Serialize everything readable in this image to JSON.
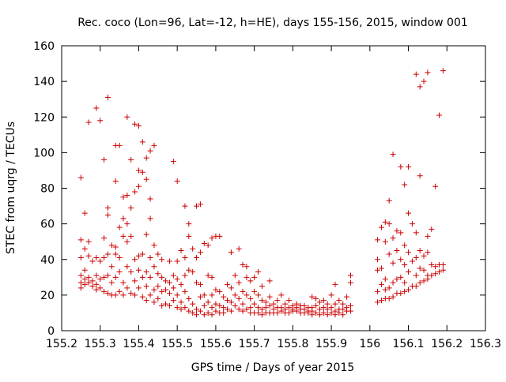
{
  "chart_data": {
    "type": "scatter",
    "title": "Rec. coco (Lon=96, Lat=-12, h=HE), days 155-156, 2015, window 001",
    "xlabel": "GPS time / Days of year 2015",
    "ylabel": "STEC from uqrg / TECUs",
    "xlim": [
      155.2,
      156.3
    ],
    "ylim": [
      0,
      160
    ],
    "xticks": [
      "155.2",
      "155.3",
      "155.4",
      "155.5",
      "155.6",
      "155.7",
      "155.8",
      "155.9",
      "156",
      "156.1",
      "156.2",
      "156.3"
    ],
    "yticks": [
      "0",
      "20",
      "40",
      "60",
      "80",
      "100",
      "120",
      "140",
      "160"
    ],
    "grid": false,
    "legend": "none",
    "marker": "plus",
    "color": "#cc0000",
    "points": [
      [
        155.25,
        86
      ],
      [
        155.25,
        51
      ],
      [
        155.25,
        41
      ],
      [
        155.25,
        31
      ],
      [
        155.25,
        27
      ],
      [
        155.25,
        24
      ],
      [
        155.26,
        66
      ],
      [
        155.26,
        46
      ],
      [
        155.26,
        34
      ],
      [
        155.26,
        29
      ],
      [
        155.26,
        26
      ],
      [
        155.27,
        117
      ],
      [
        155.27,
        50
      ],
      [
        155.27,
        42
      ],
      [
        155.27,
        30
      ],
      [
        155.27,
        27
      ],
      [
        155.28,
        39
      ],
      [
        155.28,
        28
      ],
      [
        155.28,
        25
      ],
      [
        155.29,
        125
      ],
      [
        155.29,
        41
      ],
      [
        155.29,
        31
      ],
      [
        155.29,
        26
      ],
      [
        155.29,
        23
      ],
      [
        155.3,
        118
      ],
      [
        155.3,
        39
      ],
      [
        155.3,
        29
      ],
      [
        155.3,
        24
      ],
      [
        155.31,
        96
      ],
      [
        155.31,
        52
      ],
      [
        155.31,
        41
      ],
      [
        155.31,
        30
      ],
      [
        155.31,
        22
      ],
      [
        155.32,
        131
      ],
      [
        155.32,
        69
      ],
      [
        155.32,
        65
      ],
      [
        155.32,
        43
      ],
      [
        155.32,
        31
      ],
      [
        155.32,
        21
      ],
      [
        155.33,
        48
      ],
      [
        155.33,
        36
      ],
      [
        155.33,
        27
      ],
      [
        155.33,
        20
      ],
      [
        155.34,
        104
      ],
      [
        155.34,
        84
      ],
      [
        155.34,
        47
      ],
      [
        155.34,
        43
      ],
      [
        155.34,
        30
      ],
      [
        155.34,
        20
      ],
      [
        155.35,
        104
      ],
      [
        155.35,
        58
      ],
      [
        155.35,
        41
      ],
      [
        155.35,
        33
      ],
      [
        155.35,
        22
      ],
      [
        155.36,
        75
      ],
      [
        155.36,
        63
      ],
      [
        155.36,
        53
      ],
      [
        155.36,
        27
      ],
      [
        155.36,
        20
      ],
      [
        155.37,
        120
      ],
      [
        155.37,
        76
      ],
      [
        155.37,
        60
      ],
      [
        155.37,
        50
      ],
      [
        155.37,
        36
      ],
      [
        155.37,
        24
      ],
      [
        155.38,
        96
      ],
      [
        155.38,
        69
      ],
      [
        155.38,
        53
      ],
      [
        155.38,
        33
      ],
      [
        155.38,
        21
      ],
      [
        155.39,
        116
      ],
      [
        155.39,
        78
      ],
      [
        155.39,
        40
      ],
      [
        155.39,
        28
      ],
      [
        155.39,
        20
      ],
      [
        155.4,
        115
      ],
      [
        155.4,
        90
      ],
      [
        155.4,
        81
      ],
      [
        155.4,
        42
      ],
      [
        155.4,
        34
      ],
      [
        155.4,
        24
      ],
      [
        155.41,
        106
      ],
      [
        155.41,
        89
      ],
      [
        155.41,
        43
      ],
      [
        155.41,
        30
      ],
      [
        155.41,
        19
      ],
      [
        155.42,
        97
      ],
      [
        155.42,
        85
      ],
      [
        155.42,
        54
      ],
      [
        155.42,
        33
      ],
      [
        155.42,
        25
      ],
      [
        155.42,
        17
      ],
      [
        155.43,
        101
      ],
      [
        155.43,
        74
      ],
      [
        155.43,
        63
      ],
      [
        155.43,
        41
      ],
      [
        155.43,
        30
      ],
      [
        155.43,
        20
      ],
      [
        155.44,
        104
      ],
      [
        155.44,
        48
      ],
      [
        155.44,
        36
      ],
      [
        155.44,
        23
      ],
      [
        155.44,
        16
      ],
      [
        155.45,
        43
      ],
      [
        155.45,
        32
      ],
      [
        155.45,
        25
      ],
      [
        155.45,
        18
      ],
      [
        155.46,
        40
      ],
      [
        155.46,
        30
      ],
      [
        155.46,
        22
      ],
      [
        155.46,
        14
      ],
      [
        155.47,
        28
      ],
      [
        155.47,
        23
      ],
      [
        155.47,
        15
      ],
      [
        155.48,
        39
      ],
      [
        155.48,
        27
      ],
      [
        155.48,
        21
      ],
      [
        155.48,
        14
      ],
      [
        155.49,
        95
      ],
      [
        155.49,
        31
      ],
      [
        155.49,
        24
      ],
      [
        155.49,
        17
      ],
      [
        155.5,
        84
      ],
      [
        155.5,
        39
      ],
      [
        155.5,
        29
      ],
      [
        155.5,
        20
      ],
      [
        155.5,
        13
      ],
      [
        155.51,
        45
      ],
      [
        155.51,
        26
      ],
      [
        155.51,
        16
      ],
      [
        155.51,
        12
      ],
      [
        155.52,
        70
      ],
      [
        155.52,
        41
      ],
      [
        155.52,
        31
      ],
      [
        155.52,
        22
      ],
      [
        155.52,
        13
      ],
      [
        155.53,
        60
      ],
      [
        155.53,
        53
      ],
      [
        155.53,
        34
      ],
      [
        155.53,
        18
      ],
      [
        155.53,
        11
      ],
      [
        155.54,
        46
      ],
      [
        155.54,
        33
      ],
      [
        155.54,
        15
      ],
      [
        155.54,
        10
      ],
      [
        155.55,
        70
      ],
      [
        155.55,
        41
      ],
      [
        155.55,
        27
      ],
      [
        155.55,
        12
      ],
      [
        155.55,
        9
      ],
      [
        155.56,
        71
      ],
      [
        155.56,
        44
      ],
      [
        155.56,
        26
      ],
      [
        155.56,
        19
      ],
      [
        155.56,
        11
      ],
      [
        155.57,
        49
      ],
      [
        155.57,
        20
      ],
      [
        155.57,
        14
      ],
      [
        155.57,
        9
      ],
      [
        155.58,
        48
      ],
      [
        155.58,
        31
      ],
      [
        155.58,
        16
      ],
      [
        155.58,
        10
      ],
      [
        155.59,
        52
      ],
      [
        155.59,
        30
      ],
      [
        155.59,
        20
      ],
      [
        155.59,
        13
      ],
      [
        155.59,
        9
      ],
      [
        155.6,
        53
      ],
      [
        155.6,
        23
      ],
      [
        155.6,
        15
      ],
      [
        155.6,
        11
      ],
      [
        155.61,
        53
      ],
      [
        155.61,
        22
      ],
      [
        155.61,
        14
      ],
      [
        155.61,
        10
      ],
      [
        155.62,
        19
      ],
      [
        155.62,
        13
      ],
      [
        155.62,
        10
      ],
      [
        155.63,
        26
      ],
      [
        155.63,
        17
      ],
      [
        155.63,
        12
      ],
      [
        155.64,
        44
      ],
      [
        155.64,
        24
      ],
      [
        155.64,
        16
      ],
      [
        155.64,
        11
      ],
      [
        155.65,
        31
      ],
      [
        155.65,
        20
      ],
      [
        155.65,
        14
      ],
      [
        155.66,
        46
      ],
      [
        155.66,
        27
      ],
      [
        155.66,
        18
      ],
      [
        155.66,
        12
      ],
      [
        155.67,
        37
      ],
      [
        155.67,
        22
      ],
      [
        155.67,
        15
      ],
      [
        155.67,
        11
      ],
      [
        155.68,
        36
      ],
      [
        155.68,
        30
      ],
      [
        155.68,
        20
      ],
      [
        155.68,
        12
      ],
      [
        155.69,
        28
      ],
      [
        155.69,
        18
      ],
      [
        155.69,
        13
      ],
      [
        155.69,
        10
      ],
      [
        155.7,
        30
      ],
      [
        155.7,
        22
      ],
      [
        155.7,
        15
      ],
      [
        155.7,
        10
      ],
      [
        155.71,
        33
      ],
      [
        155.71,
        20
      ],
      [
        155.71,
        13
      ],
      [
        155.71,
        10
      ],
      [
        155.72,
        25
      ],
      [
        155.72,
        17
      ],
      [
        155.72,
        12
      ],
      [
        155.72,
        9
      ],
      [
        155.73,
        16
      ],
      [
        155.73,
        13
      ],
      [
        155.73,
        10
      ],
      [
        155.74,
        28
      ],
      [
        155.74,
        19
      ],
      [
        155.74,
        14
      ],
      [
        155.74,
        10
      ],
      [
        155.75,
        15
      ],
      [
        155.75,
        12
      ],
      [
        155.75,
        10
      ],
      [
        155.76,
        17
      ],
      [
        155.76,
        13
      ],
      [
        155.76,
        10
      ],
      [
        155.77,
        20
      ],
      [
        155.77,
        13
      ],
      [
        155.77,
        11
      ],
      [
        155.78,
        15
      ],
      [
        155.78,
        12
      ],
      [
        155.78,
        10
      ],
      [
        155.79,
        17
      ],
      [
        155.79,
        13
      ],
      [
        155.79,
        10
      ],
      [
        155.8,
        14
      ],
      [
        155.8,
        12
      ],
      [
        155.8,
        11
      ],
      [
        155.81,
        15
      ],
      [
        155.81,
        13
      ],
      [
        155.81,
        11
      ],
      [
        155.82,
        14
      ],
      [
        155.82,
        12
      ],
      [
        155.82,
        10
      ],
      [
        155.83,
        14
      ],
      [
        155.83,
        12
      ],
      [
        155.83,
        10
      ],
      [
        155.84,
        13
      ],
      [
        155.84,
        11
      ],
      [
        155.84,
        10
      ],
      [
        155.85,
        19
      ],
      [
        155.85,
        13
      ],
      [
        155.85,
        11
      ],
      [
        155.85,
        9
      ],
      [
        155.86,
        18
      ],
      [
        155.86,
        14
      ],
      [
        155.86,
        10
      ],
      [
        155.87,
        16
      ],
      [
        155.87,
        12
      ],
      [
        155.87,
        9
      ],
      [
        155.88,
        17
      ],
      [
        155.88,
        13
      ],
      [
        155.88,
        10
      ],
      [
        155.89,
        15
      ],
      [
        155.89,
        12
      ],
      [
        155.89,
        9
      ],
      [
        155.9,
        20
      ],
      [
        155.9,
        13
      ],
      [
        155.9,
        10
      ],
      [
        155.91,
        26
      ],
      [
        155.91,
        15
      ],
      [
        155.91,
        11
      ],
      [
        155.91,
        9
      ],
      [
        155.92,
        17
      ],
      [
        155.92,
        12
      ],
      [
        155.92,
        10
      ],
      [
        155.93,
        15
      ],
      [
        155.93,
        12
      ],
      [
        155.93,
        9
      ],
      [
        155.94,
        19
      ],
      [
        155.94,
        13
      ],
      [
        155.94,
        11
      ],
      [
        155.95,
        31
      ],
      [
        155.95,
        27
      ],
      [
        155.95,
        14
      ],
      [
        155.95,
        11
      ],
      [
        156.02,
        51
      ],
      [
        156.02,
        40
      ],
      [
        156.02,
        34
      ],
      [
        156.02,
        22
      ],
      [
        156.02,
        16
      ],
      [
        156.03,
        58
      ],
      [
        156.03,
        35
      ],
      [
        156.03,
        26
      ],
      [
        156.03,
        17
      ],
      [
        156.04,
        61
      ],
      [
        156.04,
        50
      ],
      [
        156.04,
        29
      ],
      [
        156.04,
        23
      ],
      [
        156.04,
        18
      ],
      [
        156.05,
        73
      ],
      [
        156.05,
        60
      ],
      [
        156.05,
        43
      ],
      [
        156.05,
        24
      ],
      [
        156.05,
        18
      ],
      [
        156.06,
        99
      ],
      [
        156.06,
        52
      ],
      [
        156.06,
        38
      ],
      [
        156.06,
        27
      ],
      [
        156.06,
        19
      ],
      [
        156.07,
        56
      ],
      [
        156.07,
        45
      ],
      [
        156.07,
        29
      ],
      [
        156.07,
        21
      ],
      [
        156.08,
        92
      ],
      [
        156.08,
        55
      ],
      [
        156.08,
        40
      ],
      [
        156.08,
        30
      ],
      [
        156.08,
        21
      ],
      [
        156.09,
        82
      ],
      [
        156.09,
        48
      ],
      [
        156.09,
        37
      ],
      [
        156.09,
        27
      ],
      [
        156.09,
        22
      ],
      [
        156.1,
        92
      ],
      [
        156.1,
        66
      ],
      [
        156.1,
        44
      ],
      [
        156.1,
        33
      ],
      [
        156.1,
        23
      ],
      [
        156.11,
        60
      ],
      [
        156.11,
        39
      ],
      [
        156.11,
        25
      ],
      [
        156.12,
        144
      ],
      [
        156.12,
        55
      ],
      [
        156.12,
        41
      ],
      [
        156.12,
        31
      ],
      [
        156.12,
        25
      ],
      [
        156.13,
        137
      ],
      [
        156.13,
        87
      ],
      [
        156.13,
        45
      ],
      [
        156.13,
        35
      ],
      [
        156.13,
        27
      ],
      [
        156.14,
        140
      ],
      [
        156.14,
        42
      ],
      [
        156.14,
        34
      ],
      [
        156.14,
        28
      ],
      [
        156.15,
        145
      ],
      [
        156.15,
        53
      ],
      [
        156.15,
        44
      ],
      [
        156.15,
        31
      ],
      [
        156.15,
        29
      ],
      [
        156.16,
        57
      ],
      [
        156.16,
        37
      ],
      [
        156.16,
        31
      ],
      [
        156.17,
        81
      ],
      [
        156.17,
        36
      ],
      [
        156.17,
        32
      ],
      [
        156.18,
        121
      ],
      [
        156.18,
        37
      ],
      [
        156.18,
        33
      ],
      [
        156.19,
        146
      ],
      [
        156.19,
        37
      ],
      [
        156.19,
        34
      ]
    ]
  }
}
